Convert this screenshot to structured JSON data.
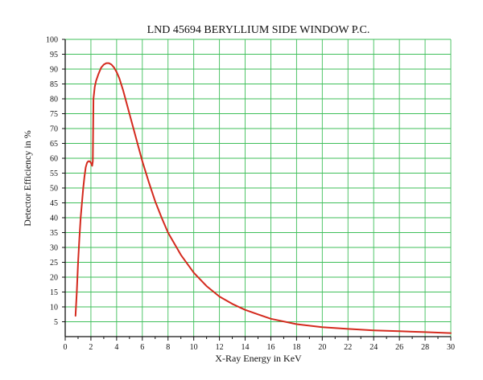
{
  "chart_data": {
    "type": "line",
    "title": "LND 45694 BERYLLIUM SIDE WINDOW P.C.",
    "xlabel": "X-Ray Energy in KeV",
    "ylabel": "Detector Efficiency in %",
    "xlim": [
      0,
      30
    ],
    "ylim": [
      0,
      100
    ],
    "x_ticks": [
      0,
      2,
      4,
      6,
      8,
      10,
      12,
      14,
      16,
      18,
      20,
      22,
      24,
      26,
      28,
      30
    ],
    "y_ticks": [
      5,
      10,
      15,
      20,
      25,
      30,
      35,
      40,
      45,
      50,
      55,
      60,
      65,
      70,
      75,
      80,
      85,
      90,
      95,
      100
    ],
    "grid": true,
    "colors": {
      "grid": "#3fbf5a",
      "axis": "#111111",
      "line": "#d42a1e"
    },
    "series": [
      {
        "x": [
          0.8,
          0.9,
          1.0,
          1.1,
          1.2,
          1.3,
          1.4,
          1.5,
          1.6,
          1.7,
          1.8,
          1.9,
          2.0,
          2.1,
          2.15,
          2.2,
          2.25,
          2.3,
          2.4,
          2.6,
          2.8,
          3.0,
          3.2,
          3.4,
          3.6,
          3.8,
          4.0,
          4.2,
          4.5,
          5.0,
          5.5,
          6.0,
          6.5,
          7.0,
          7.5,
          8.0,
          9.0,
          10.0,
          11.0,
          12.0,
          13.0,
          14.0,
          15.0,
          16.0,
          18.0,
          20.0,
          22.0,
          24.0,
          26.0,
          28.0,
          30.0
        ],
        "y": [
          7,
          15,
          25,
          33,
          40,
          45,
          50,
          54,
          57,
          58.5,
          59,
          59,
          58.5,
          57.5,
          59,
          80,
          82,
          84,
          86,
          88.5,
          90.5,
          91.5,
          92,
          92,
          91.5,
          90.5,
          89,
          87,
          83,
          75,
          67,
          59,
          52,
          45.5,
          40,
          35,
          27.5,
          21.5,
          17,
          13.5,
          11,
          9,
          7.5,
          6,
          4.2,
          3.2,
          2.6,
          2.1,
          1.8,
          1.5,
          1.2
        ]
      }
    ]
  }
}
